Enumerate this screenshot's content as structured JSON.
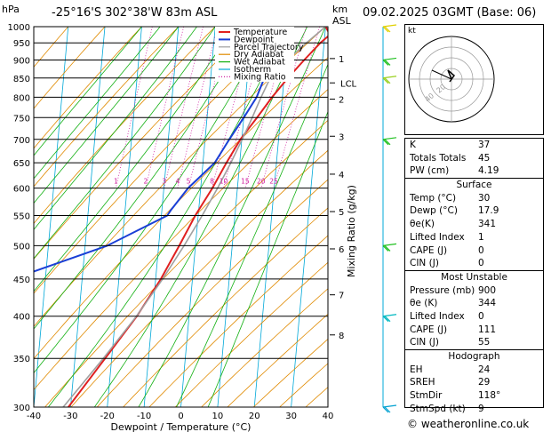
{
  "header": {
    "left_unit": "hPa",
    "location": "-25°16'S  302°38'W  83m  ASL",
    "alt_unit_km": "km",
    "alt_unit_asl": "ASL",
    "datetime": "09.02.2025  03GMT  (Base: 06)"
  },
  "footer": {
    "credit": "© weatheronline.co.uk"
  },
  "chart_data": {
    "type": "skew-t",
    "xlabel": "Dewpoint / Temperature (°C)",
    "ylabel_right": "Mixing Ratio (g/kg)",
    "pressure_ticks": [
      300,
      350,
      400,
      450,
      500,
      550,
      600,
      650,
      700,
      750,
      800,
      850,
      900,
      950,
      1000
    ],
    "temp_ticks": [
      -40,
      -30,
      -20,
      -10,
      0,
      10,
      20,
      30,
      40
    ],
    "xlim": [
      -40,
      40
    ],
    "ylim": [
      1000,
      300
    ],
    "km_ticks": [
      {
        "label": "1",
        "p": 904
      },
      {
        "label": "2",
        "p": 795
      },
      {
        "label": "3",
        "p": 707
      },
      {
        "label": "4",
        "p": 627
      },
      {
        "label": "5",
        "p": 557
      },
      {
        "label": "6",
        "p": 495
      },
      {
        "label": "7",
        "p": 428
      },
      {
        "label": "8",
        "p": 377
      }
    ],
    "lcl": {
      "label": "LCL",
      "p": 837
    },
    "mixing_ratio_labels": [
      "1",
      "2",
      "3",
      "4",
      "5",
      "8",
      "10",
      "15",
      "20",
      "25"
    ],
    "legend": [
      "Temperature",
      "Dewpoint",
      "Parcel Trajectory",
      "Dry Adiabat",
      "Wet Adiabat",
      "Isotherm",
      "Mixing Ratio"
    ],
    "colors": {
      "temperature": "#e02020",
      "dewpoint": "#1a3fd6",
      "parcel": "#a0a0a0",
      "dry_adiabat": "#e08a00",
      "wet_adiabat": "#12b012",
      "isotherm": "#00a8d8",
      "mixing_ratio": "#d020a0",
      "wind": "#20c020"
    },
    "series": [
      {
        "name": "Temperature",
        "points": [
          [
            1000,
            30
          ],
          [
            975,
            31.4
          ],
          [
            950,
            29
          ],
          [
            900,
            25
          ],
          [
            850,
            21
          ],
          [
            800,
            17.2
          ],
          [
            750,
            13.6
          ],
          [
            700,
            9.6
          ],
          [
            650,
            6.4
          ],
          [
            600,
            3.2
          ],
          [
            550,
            -0.8
          ],
          [
            500,
            -4.4
          ],
          [
            450,
            -8.6
          ],
          [
            400,
            -14.2
          ],
          [
            350,
            -21.8
          ],
          [
            300,
            -30.6
          ]
        ]
      },
      {
        "name": "Dewpoint",
        "points": [
          [
            1000,
            17.9
          ],
          [
            975,
            16.4
          ],
          [
            950,
            16.6
          ],
          [
            900,
            15.8
          ],
          [
            850,
            14.6
          ],
          [
            800,
            13
          ],
          [
            750,
            10
          ],
          [
            700,
            6.6
          ],
          [
            650,
            3.2
          ],
          [
            600,
            -3.4
          ],
          [
            560,
            -7.5
          ],
          [
            550,
            -8.4
          ],
          [
            500,
            -24
          ],
          [
            450,
            -49
          ],
          [
            400,
            -50
          ],
          [
            350,
            -52
          ],
          [
            300,
            -60
          ]
        ]
      },
      {
        "name": "Parcel Trajectory",
        "points": [
          [
            1000,
            30
          ],
          [
            950,
            25.2
          ],
          [
            900,
            20.4
          ],
          [
            850,
            16.2
          ],
          [
            800,
            14.2
          ],
          [
            750,
            12.3
          ],
          [
            700,
            10.1
          ],
          [
            650,
            7.6
          ],
          [
            600,
            4.6
          ],
          [
            550,
            1.1
          ],
          [
            500,
            -3.1
          ],
          [
            450,
            -8.1
          ],
          [
            400,
            -14.3
          ],
          [
            350,
            -22.3
          ],
          [
            300,
            -32
          ]
        ]
      }
    ]
  },
  "hodograph": {
    "unit": "kt",
    "ring_labels": [
      "20",
      "40"
    ]
  },
  "indices": [
    {
      "k": "K",
      "v": "37"
    },
    {
      "k": "Totals Totals",
      "v": "45"
    },
    {
      "k": "PW (cm)",
      "v": "4.19"
    }
  ],
  "surface": {
    "title": "Surface",
    "rows": [
      {
        "k": "Temp (°C)",
        "v": "30"
      },
      {
        "k": "Dewp (°C)",
        "v": "17.9"
      },
      {
        "k": "θe(K)",
        "v": "341"
      },
      {
        "k": "Lifted Index",
        "v": "1"
      },
      {
        "k": "CAPE (J)",
        "v": "0"
      },
      {
        "k": "CIN (J)",
        "v": "0"
      }
    ]
  },
  "unstable": {
    "title": "Most Unstable",
    "rows": [
      {
        "k": "Pressure (mb)",
        "v": "900"
      },
      {
        "k": "θe (K)",
        "v": "344"
      },
      {
        "k": "Lifted Index",
        "v": "0"
      },
      {
        "k": "CAPE (J)",
        "v": "111"
      },
      {
        "k": "CIN (J)",
        "v": "55"
      }
    ]
  },
  "hodo_stats": {
    "title": "Hodograph",
    "rows": [
      {
        "k": "EH",
        "v": "24"
      },
      {
        "k": "SREH",
        "v": "29"
      },
      {
        "k": "StmDir",
        "v": "118°"
      },
      {
        "k": "StmSpd (kt)",
        "v": "9"
      }
    ]
  }
}
